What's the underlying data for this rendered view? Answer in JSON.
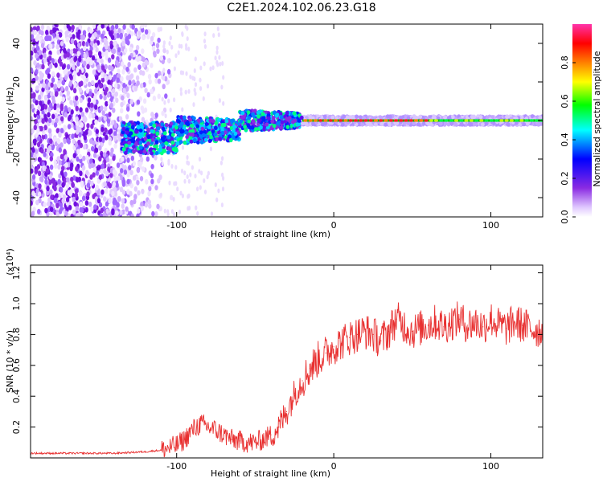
{
  "title": "C2E1.2024.102.06.23.G18",
  "chart_data": [
    {
      "type": "heatmap",
      "xlabel": "Height of straight line (km)",
      "ylabel": "Frequency (Hz)",
      "xlim": [
        -193,
        133
      ],
      "ylim": [
        -50,
        50
      ],
      "x_ticks": [
        -100,
        0,
        100
      ],
      "y_ticks": [
        -40,
        -20,
        0,
        20,
        40
      ],
      "colorbar": {
        "label": "Normalized spectral amplitude",
        "range": [
          0,
          1
        ],
        "ticks": [
          "0.0",
          "0.2",
          "0.4",
          "0.6",
          "0.8"
        ],
        "colors": [
          "#ffffff",
          "#e0c8ff",
          "#8a2be2",
          "#0000ff",
          "#00ffff",
          "#00ff00",
          "#ffff00",
          "#ff8000",
          "#ff0000",
          "#ff33aa"
        ]
      },
      "description_bands": {
        "noise_region_km": [
          -193,
          -110
        ],
        "signal_center_hz": 0
      }
    },
    {
      "type": "line",
      "xlabel": "Height of straight line (km)",
      "ylabel": "SNR (10 * v/v)",
      "y_multiplier": "(x10⁴)",
      "xlim": [
        -193,
        133
      ],
      "ylim": [
        0,
        1.25
      ],
      "x_ticks": [
        -100,
        0,
        100
      ],
      "y_ticks": [
        0.2,
        0.4,
        0.6,
        0.8,
        1.0,
        1.2
      ],
      "color": "#e83030",
      "series": [
        {
          "x": [
            -193,
            -180,
            -160,
            -140,
            -120,
            -110,
            -100,
            -95,
            -90,
            -85,
            -80,
            -75,
            -70,
            -65,
            -60,
            -55,
            -50,
            -45,
            -40,
            -35,
            -30,
            -25,
            -20,
            -15,
            -10,
            -5,
            0,
            5,
            10,
            15,
            20,
            25,
            30,
            35,
            40,
            45,
            50,
            55,
            60,
            65,
            70,
            75,
            80,
            85,
            90,
            95,
            100,
            105,
            110,
            115,
            120,
            125,
            133
          ],
          "y": [
            0.03,
            0.03,
            0.03,
            0.03,
            0.04,
            0.05,
            0.08,
            0.12,
            0.18,
            0.22,
            0.2,
            0.18,
            0.15,
            0.12,
            0.11,
            0.1,
            0.1,
            0.12,
            0.15,
            0.2,
            0.3,
            0.42,
            0.5,
            0.58,
            0.64,
            0.68,
            0.72,
            0.75,
            0.78,
            0.8,
            0.82,
            0.8,
            0.76,
            0.82,
            0.9,
            0.86,
            0.82,
            0.84,
            0.86,
            0.88,
            0.85,
            0.88,
            0.9,
            0.86,
            0.88,
            0.85,
            0.9,
            0.86,
            0.84,
            0.88,
            0.86,
            0.84,
            0.82
          ]
        }
      ]
    }
  ]
}
